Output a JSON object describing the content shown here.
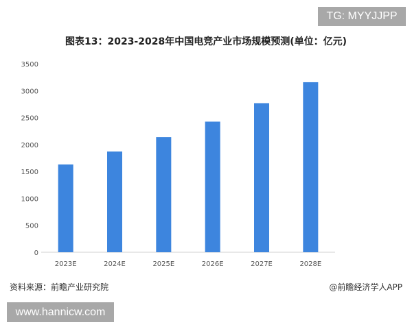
{
  "watermark_tag": "TG: MYYJJPP",
  "source": "资料来源：前瞻产业研究院",
  "credit": "@前瞻经济学人APP",
  "website": "www.hannicw.com",
  "chart_data": {
    "type": "bar",
    "title": "图表13：2023-2028年中国电竞产业市场规模预测(单位：亿元)",
    "categories": [
      "2023E",
      "2024E",
      "2025E",
      "2026E",
      "2027E",
      "2028E"
    ],
    "values": [
      1630,
      1870,
      2137,
      2425,
      2768,
      3157
    ],
    "ylim": [
      0,
      3500
    ],
    "yticks": [
      0,
      500,
      1000,
      1500,
      2000,
      2500,
      3000,
      3500
    ],
    "grid": false,
    "color": "#3d85de"
  }
}
